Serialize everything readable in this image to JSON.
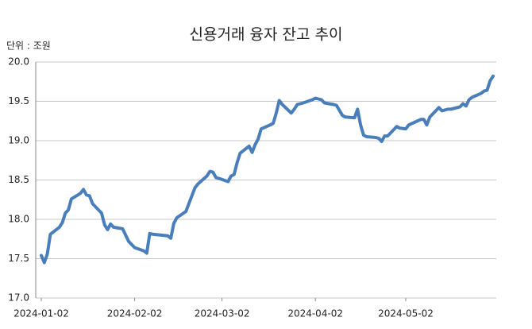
{
  "chart_data": {
    "type": "line",
    "title": "신용거래 융자 잔고 추이",
    "y_unit_label": "단위 : 조원",
    "x": [
      "2024-01-02",
      "2024-01-03",
      "2024-01-04",
      "2024-01-05",
      "2024-01-08",
      "2024-01-09",
      "2024-01-10",
      "2024-01-11",
      "2024-01-12",
      "2024-01-15",
      "2024-01-16",
      "2024-01-17",
      "2024-01-18",
      "2024-01-19",
      "2024-01-22",
      "2024-01-23",
      "2024-01-24",
      "2024-01-25",
      "2024-01-26",
      "2024-01-29",
      "2024-01-30",
      "2024-01-31",
      "2024-02-01",
      "2024-02-02",
      "2024-02-05",
      "2024-02-06",
      "2024-02-07",
      "2024-02-08",
      "2024-02-13",
      "2024-02-14",
      "2024-02-15",
      "2024-02-16",
      "2024-02-19",
      "2024-02-20",
      "2024-02-21",
      "2024-02-22",
      "2024-02-23",
      "2024-02-26",
      "2024-02-27",
      "2024-02-28",
      "2024-02-29",
      "2024-03-01",
      "2024-03-04",
      "2024-03-05",
      "2024-03-06",
      "2024-03-07",
      "2024-03-08",
      "2024-03-11",
      "2024-03-12",
      "2024-03-13",
      "2024-03-14",
      "2024-03-15",
      "2024-03-18",
      "2024-03-19",
      "2024-03-20",
      "2024-03-21",
      "2024-03-22",
      "2024-03-25",
      "2024-03-26",
      "2024-03-27",
      "2024-03-28",
      "2024-03-29",
      "2024-04-01",
      "2024-04-02",
      "2024-04-03",
      "2024-04-04",
      "2024-04-05",
      "2024-04-08",
      "2024-04-09",
      "2024-04-11",
      "2024-04-12",
      "2024-04-15",
      "2024-04-16",
      "2024-04-17",
      "2024-04-18",
      "2024-04-19",
      "2024-04-22",
      "2024-04-23",
      "2024-04-24",
      "2024-04-25",
      "2024-04-26",
      "2024-04-29",
      "2024-04-30",
      "2024-05-02",
      "2024-05-03",
      "2024-05-07",
      "2024-05-08",
      "2024-05-09",
      "2024-05-10",
      "2024-05-13",
      "2024-05-14",
      "2024-05-16",
      "2024-05-17",
      "2024-05-20",
      "2024-05-21",
      "2024-05-22",
      "2024-05-23",
      "2024-05-24",
      "2024-05-27",
      "2024-05-28",
      "2024-05-29",
      "2024-05-30",
      "2024-05-31"
    ],
    "series": [
      {
        "color": "#4a7ebb",
        "values": [
          17.54,
          17.45,
          17.56,
          17.81,
          17.9,
          17.96,
          18.08,
          18.12,
          18.26,
          18.33,
          18.38,
          18.31,
          18.3,
          18.2,
          18.08,
          17.93,
          17.87,
          17.94,
          17.9,
          17.88,
          17.8,
          17.72,
          17.68,
          17.64,
          17.6,
          17.57,
          17.82,
          17.81,
          17.79,
          17.76,
          17.95,
          18.02,
          18.1,
          18.2,
          18.3,
          18.4,
          18.45,
          18.55,
          18.61,
          18.6,
          18.53,
          18.52,
          18.48,
          18.55,
          18.57,
          18.72,
          18.84,
          18.93,
          18.85,
          18.95,
          19.02,
          19.15,
          19.2,
          19.22,
          19.35,
          19.51,
          19.46,
          19.35,
          19.4,
          19.46,
          19.47,
          19.48,
          19.52,
          19.54,
          19.53,
          19.52,
          19.48,
          19.46,
          19.45,
          19.32,
          19.3,
          19.29,
          19.4,
          19.2,
          19.07,
          19.05,
          19.04,
          19.03,
          18.99,
          19.06,
          19.06,
          19.18,
          19.16,
          19.15,
          19.2,
          19.27,
          19.27,
          19.2,
          19.3,
          19.42,
          19.38,
          19.4,
          19.4,
          19.43,
          19.47,
          19.44,
          19.52,
          19.55,
          19.6,
          19.63,
          19.64,
          19.76,
          19.82
        ]
      }
    ],
    "xlim": [
      "2024-01-02",
      "2024-05-31"
    ],
    "xticks": [
      "2024-01-02",
      "2024-02-02",
      "2024-03-02",
      "2024-04-02",
      "2024-05-02"
    ],
    "ylim": [
      17,
      20
    ],
    "yticks": [
      {
        "value": 17,
        "label": "17.0"
      },
      {
        "value": 17.5,
        "label": "17.5"
      },
      {
        "value": 18,
        "label": "18.0"
      },
      {
        "value": 18.5,
        "label": "18.5"
      },
      {
        "value": 19,
        "label": "19.0"
      },
      {
        "value": 19.5,
        "label": "19.5"
      },
      {
        "value": 20,
        "label": "20.0"
      }
    ],
    "grid": true
  }
}
